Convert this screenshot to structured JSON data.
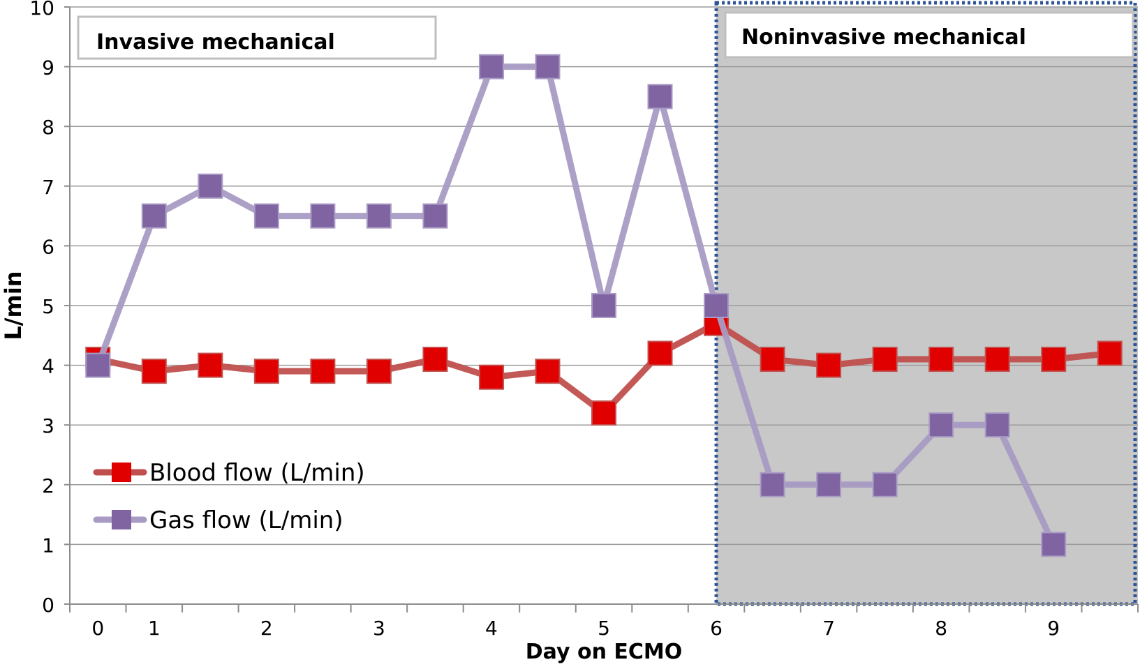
{
  "chart_data": {
    "type": "line",
    "ylabel": "L/min",
    "xlabel": "Day on ECMO",
    "ylim": [
      0,
      10
    ],
    "yticks": [
      "0",
      "1",
      "2",
      "3",
      "4",
      "5",
      "6",
      "7",
      "8",
      "9",
      "10"
    ],
    "x_category_count": 19,
    "xtick_labels": [
      {
        "index": 0,
        "label": "0"
      },
      {
        "index": 1,
        "label": "1"
      },
      {
        "index": 3,
        "label": "2"
      },
      {
        "index": 5,
        "label": "3"
      },
      {
        "index": 7,
        "label": "4"
      },
      {
        "index": 9,
        "label": "5"
      },
      {
        "index": 11,
        "label": "6"
      },
      {
        "index": 13,
        "label": "7"
      },
      {
        "index": 15,
        "label": "8"
      },
      {
        "index": 17,
        "label": "9"
      }
    ],
    "grid": true,
    "legend_position": "bottom-left",
    "series": [
      {
        "name": "Blood flow (L/min)",
        "color": "#e00000",
        "line_color": "#c0504d",
        "values": [
          4.1,
          3.9,
          4.0,
          3.9,
          3.9,
          3.9,
          4.1,
          3.8,
          3.9,
          3.2,
          4.2,
          4.7,
          4.1,
          4.0,
          4.1,
          4.1,
          4.1,
          4.1,
          4.2
        ]
      },
      {
        "name": "Gas flow (L/min)",
        "color": "#8064a2",
        "line_color": "#a99bc4",
        "values": [
          4.0,
          6.5,
          7.0,
          6.5,
          6.5,
          6.5,
          6.5,
          9.0,
          9.0,
          5.0,
          8.5,
          5.0,
          2.0,
          2.0,
          2.0,
          3.0,
          3.0,
          1.0,
          null
        ]
      }
    ],
    "annotations": [
      {
        "text": "Invasive mechanical"
      },
      {
        "text": "Noninvasive mechanical"
      }
    ]
  },
  "colors": {
    "shaded_region": "#c8c8c8",
    "region_border": "#2f5496",
    "grid": "#9a9a9a"
  }
}
